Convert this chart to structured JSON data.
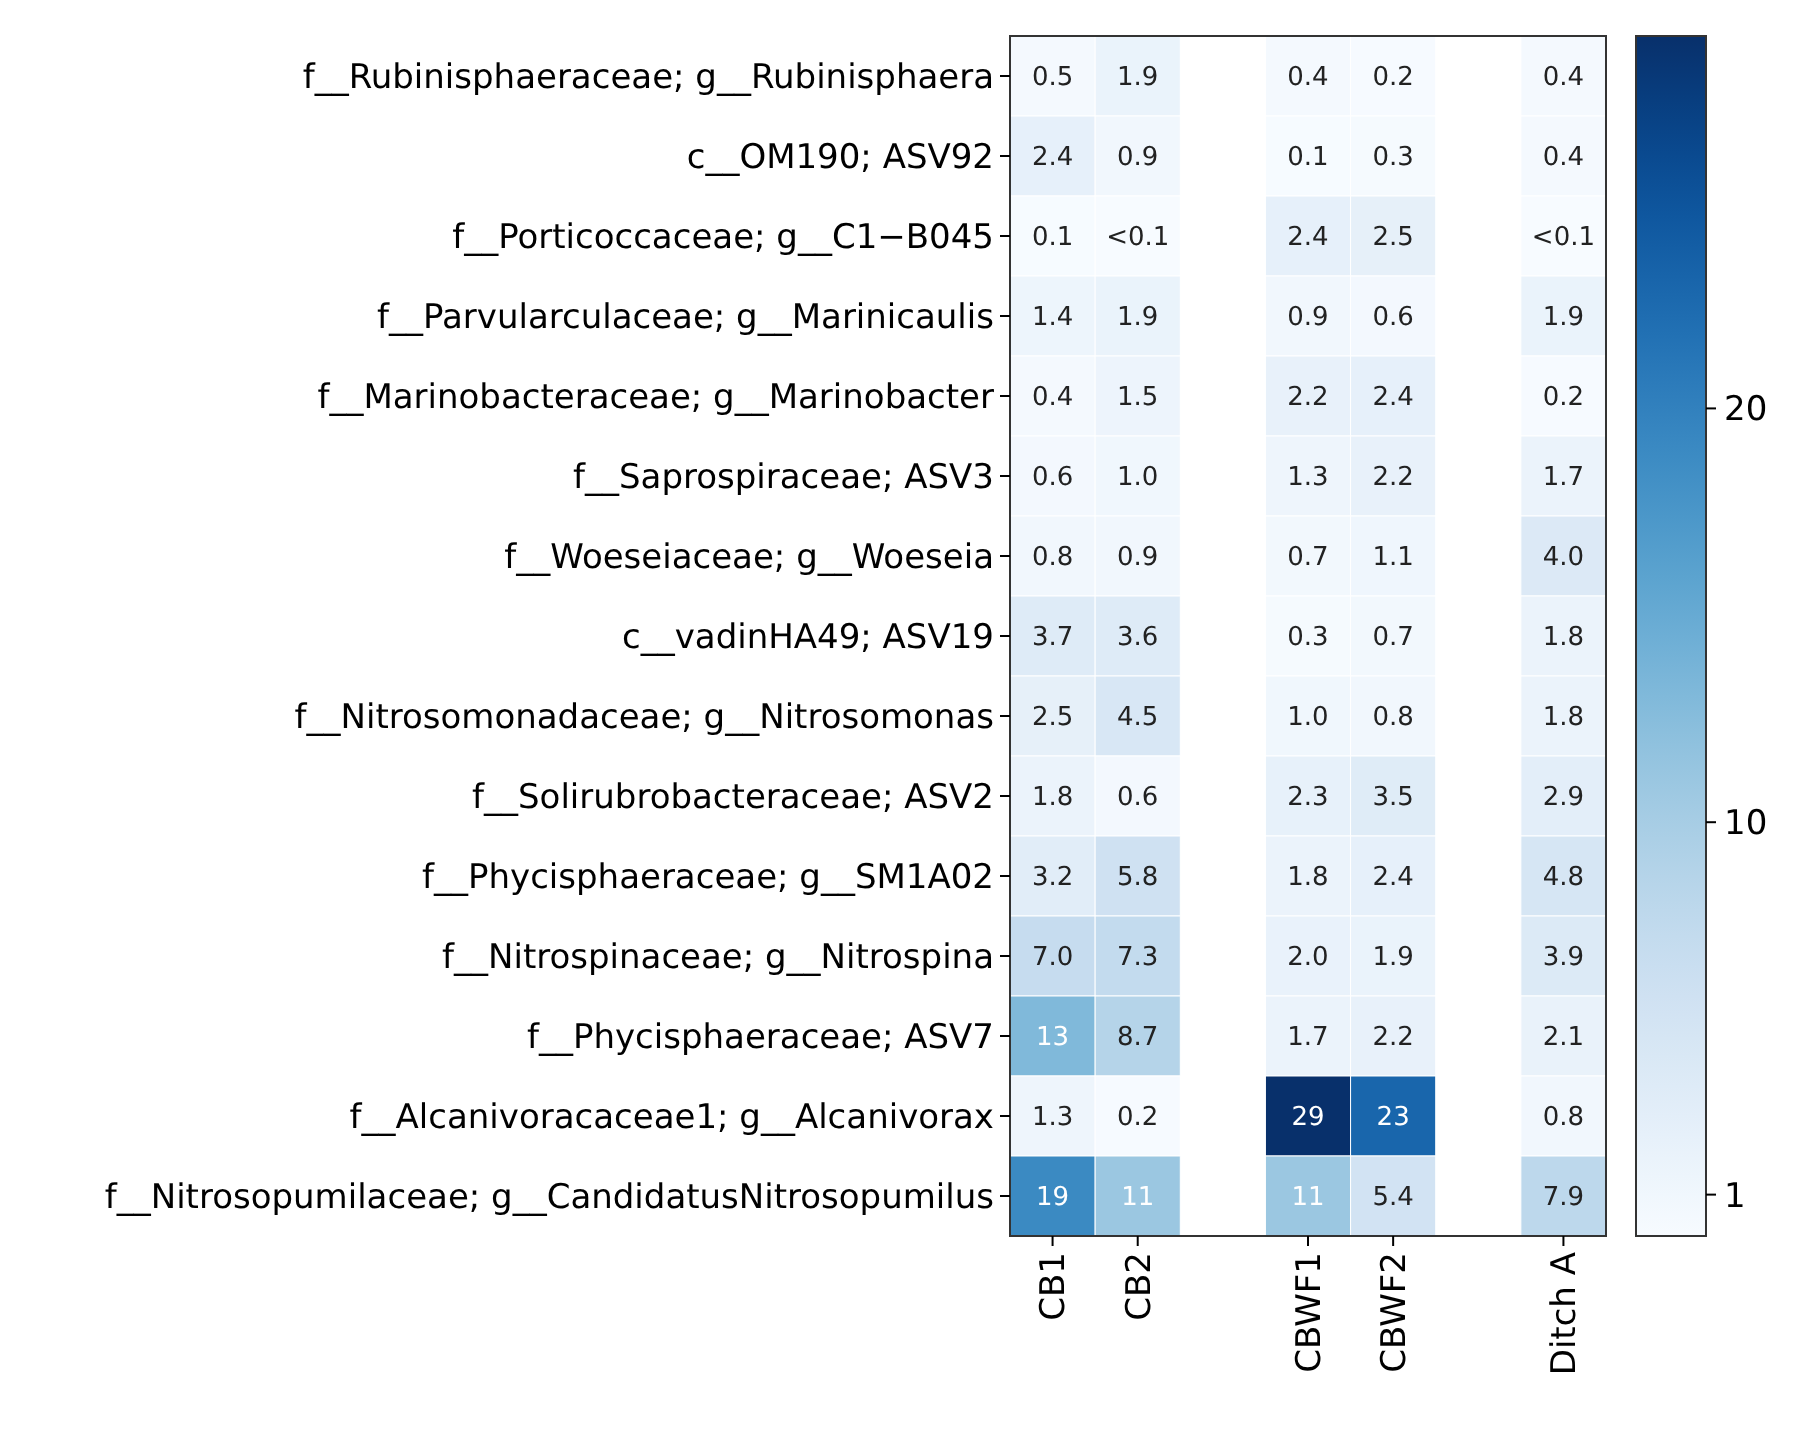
{
  "chart_data": {
    "type": "heatmap",
    "categories": [
      "CB1",
      "CB2",
      null,
      "CBWF1",
      "CBWF2",
      null,
      "Ditch A"
    ],
    "y_categories": [
      "f__Rubinisphaeraceae;  g__Rubinisphaera",
      "c__OM190;  ASV92",
      "f__Porticoccaceae;  g__C1−B045",
      "f__Parvularculaceae;  g__Marinicaulis",
      "f__Marinobacteraceae;  g__Marinobacter",
      "f__Saprospiraceae;  ASV3",
      "f__Woeseiaceae;  g__Woeseia",
      "c__vadinHA49;  ASV19",
      "f__Nitrosomonadaceae;  g__Nitrosomonas",
      "f__Solirubrobacteraceae;  ASV2",
      "f__Phycisphaeraceae;  g__SM1A02",
      "f__Nitrospinaceae;  g__Nitrospina",
      "f__Phycisphaeraceae;  ASV7",
      "f__Alcanivoracaceae1;  g__Alcanivorax",
      "f__Nitrosopumilaceae;  g__CandidatusNitrosopumilus"
    ],
    "cells": [
      [
        0.5,
        1.9,
        null,
        0.4,
        0.2,
        null,
        0.4
      ],
      [
        2.4,
        0.9,
        null,
        0.1,
        0.3,
        null,
        0.4
      ],
      [
        0.1,
        0.05,
        null,
        2.4,
        2.5,
        null,
        0.05
      ],
      [
        1.4,
        1.9,
        null,
        0.9,
        0.6,
        null,
        1.9
      ],
      [
        0.4,
        1.5,
        null,
        2.2,
        2.4,
        null,
        0.2
      ],
      [
        0.6,
        1.0,
        null,
        1.3,
        2.2,
        null,
        1.7
      ],
      [
        0.8,
        0.9,
        null,
        0.7,
        1.1,
        null,
        4.0
      ],
      [
        3.7,
        3.6,
        null,
        0.3,
        0.7,
        null,
        1.8
      ],
      [
        2.5,
        4.5,
        null,
        1.0,
        0.8,
        null,
        1.8
      ],
      [
        1.8,
        0.6,
        null,
        2.3,
        3.5,
        null,
        2.9
      ],
      [
        3.2,
        5.8,
        null,
        1.8,
        2.4,
        null,
        4.8
      ],
      [
        7.0,
        7.3,
        null,
        2.0,
        1.9,
        null,
        3.9
      ],
      [
        13,
        8.7,
        null,
        1.7,
        2.2,
        null,
        2.1
      ],
      [
        1.3,
        0.2,
        null,
        29,
        23,
        null,
        0.8
      ],
      [
        19,
        11,
        null,
        11,
        5.4,
        null,
        7.9
      ]
    ],
    "cell_labels": [
      [
        "0.5",
        "1.9",
        null,
        "0.4",
        "0.2",
        null,
        "0.4"
      ],
      [
        "2.4",
        "0.9",
        null,
        "0.1",
        "0.3",
        null,
        "0.4"
      ],
      [
        "0.1",
        "<0.1",
        null,
        "2.4",
        "2.5",
        null,
        "<0.1"
      ],
      [
        "1.4",
        "1.9",
        null,
        "0.9",
        "0.6",
        null,
        "1.9"
      ],
      [
        "0.4",
        "1.5",
        null,
        "2.2",
        "2.4",
        null,
        "0.2"
      ],
      [
        "0.6",
        "1.0",
        null,
        "1.3",
        "2.2",
        null,
        "1.7"
      ],
      [
        "0.8",
        "0.9",
        null,
        "0.7",
        "1.1",
        null,
        "4.0"
      ],
      [
        "3.7",
        "3.6",
        null,
        "0.3",
        "0.7",
        null,
        "1.8"
      ],
      [
        "2.5",
        "4.5",
        null,
        "1.0",
        "0.8",
        null,
        "1.8"
      ],
      [
        "1.8",
        "0.6",
        null,
        "2.3",
        "3.5",
        null,
        "2.9"
      ],
      [
        "3.2",
        "5.8",
        null,
        "1.8",
        "2.4",
        null,
        "4.8"
      ],
      [
        "7.0",
        "7.3",
        null,
        "2.0",
        "1.9",
        null,
        "3.9"
      ],
      [
        "13",
        "8.7",
        null,
        "1.7",
        "2.2",
        null,
        "2.1"
      ],
      [
        "1.3",
        "0.2",
        null,
        "29",
        "23",
        null,
        "0.8"
      ],
      [
        "19",
        "11",
        null,
        "11",
        "5.4",
        null,
        "7.9"
      ]
    ],
    "clim": [
      0,
      29
    ],
    "cticks": [
      1,
      10,
      20
    ]
  }
}
